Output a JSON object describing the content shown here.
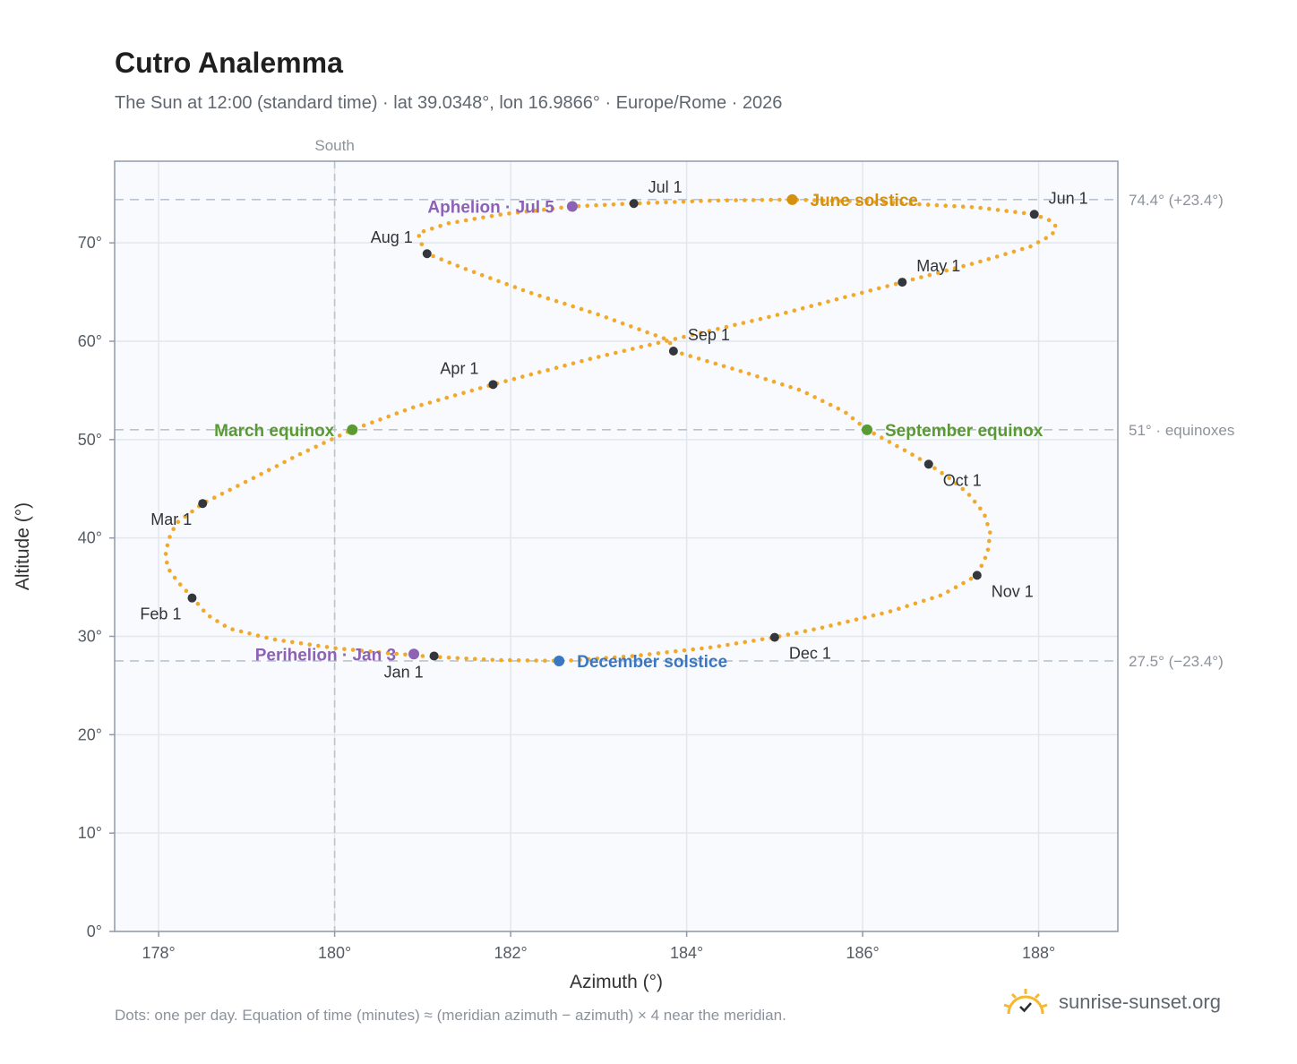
{
  "title": "Cutro Analemma",
  "subtitle": "The Sun at 12:00 (standard time) · lat 39.0348°, lon 16.9866° · Europe/Rome · 2026",
  "footnote": "Dots: one per day. Equation of time (minutes) ≈ (meridian azimuth − azimuth) × 4 near the meridian.",
  "brand": {
    "name": "sunrise-sunset.org",
    "icon": "sun-logo-icon"
  },
  "colors": {
    "path": "#f2a92a",
    "month_marker": "#33373d",
    "equinox": "#5a9a32",
    "june_solstice": "#d4900f",
    "december_solstice": "#3a77c2",
    "apsis": "#8d62b5",
    "reference_line": "#b9c3cf",
    "plot_background": "#f8fafd",
    "frame": "#8f9aa8",
    "grid": "#e2e7ee"
  },
  "chart_data": {
    "type": "scatter",
    "xlabel": "Azimuth (°)",
    "ylabel": "Altitude (°)",
    "xlim": [
      177.5,
      188.9
    ],
    "ylim": [
      0,
      78.3
    ],
    "x_ticks": [
      178,
      180,
      182,
      184,
      186,
      188
    ],
    "x_tick_labels": [
      "178°",
      "180°",
      "182°",
      "184°",
      "186°",
      "188°"
    ],
    "y_ticks": [
      0,
      10,
      20,
      30,
      40,
      50,
      60,
      70
    ],
    "y_tick_labels": [
      "0°",
      "10°",
      "20°",
      "30°",
      "40°",
      "50°",
      "60°",
      "70°"
    ],
    "grid": true,
    "meridian": {
      "azimuth": 180,
      "label": "South"
    },
    "reference_lines": [
      {
        "altitude": 74.4,
        "label": "74.4° (+23.4°)"
      },
      {
        "altitude": 51.0,
        "label": "51° · equinoxes"
      },
      {
        "altitude": 27.5,
        "label": "27.5° (−23.4°)"
      }
    ],
    "path_anchors": [
      [
        181.0,
        28.0
      ],
      [
        180.6,
        28.3
      ],
      [
        180.0,
        28.8
      ],
      [
        179.3,
        29.7
      ],
      [
        178.8,
        30.8
      ],
      [
        178.55,
        32.2
      ],
      [
        178.38,
        34.0
      ],
      [
        178.22,
        35.5
      ],
      [
        178.1,
        37.0
      ],
      [
        178.08,
        38.5
      ],
      [
        178.12,
        40.0
      ],
      [
        178.2,
        41.5
      ],
      [
        178.5,
        43.5
      ],
      [
        179.1,
        46.2
      ],
      [
        179.6,
        48.5
      ],
      [
        180.2,
        51.0
      ],
      [
        180.9,
        53.3
      ],
      [
        181.8,
        55.6
      ],
      [
        182.9,
        58.2
      ],
      [
        183.9,
        60.3
      ],
      [
        185.0,
        62.6
      ],
      [
        186.45,
        66.0
      ],
      [
        187.3,
        68.0
      ],
      [
        187.9,
        69.6
      ],
      [
        188.15,
        70.8
      ],
      [
        188.2,
        71.6
      ],
      [
        188.15,
        72.2
      ],
      [
        187.95,
        72.9
      ],
      [
        187.3,
        73.6
      ],
      [
        186.3,
        74.1
      ],
      [
        185.2,
        74.4
      ],
      [
        184.3,
        74.3
      ],
      [
        183.4,
        74.0
      ],
      [
        182.7,
        73.7
      ],
      [
        181.9,
        72.9
      ],
      [
        181.3,
        72.0
      ],
      [
        180.95,
        71.0
      ],
      [
        180.98,
        70.0
      ],
      [
        181.05,
        68.9
      ],
      [
        181.5,
        67.3
      ],
      [
        182.2,
        65.0
      ],
      [
        183.0,
        62.7
      ],
      [
        183.8,
        60.1
      ],
      [
        183.85,
        59.0
      ],
      [
        184.6,
        57.0
      ],
      [
        185.3,
        55.0
      ],
      [
        185.8,
        52.8
      ],
      [
        186.05,
        51.0
      ],
      [
        186.5,
        48.8
      ],
      [
        186.75,
        47.5
      ],
      [
        187.0,
        46.0
      ],
      [
        187.2,
        44.5
      ],
      [
        187.38,
        42.5
      ],
      [
        187.45,
        40.5
      ],
      [
        187.42,
        38.5
      ],
      [
        187.3,
        36.2
      ],
      [
        186.9,
        34.2
      ],
      [
        186.3,
        32.5
      ],
      [
        185.5,
        30.8
      ],
      [
        185.0,
        29.9
      ],
      [
        184.3,
        28.9
      ],
      [
        183.4,
        28.0
      ],
      [
        182.6,
        27.5
      ],
      [
        181.8,
        27.6
      ],
      [
        181.15,
        27.9
      ],
      [
        181.0,
        28.0
      ]
    ],
    "months": [
      {
        "label": "Jan 1",
        "azimuth": 181.13,
        "altitude": 28.0,
        "label_pos": "below-left"
      },
      {
        "label": "Feb 1",
        "azimuth": 178.38,
        "altitude": 33.9,
        "label_pos": "below-left"
      },
      {
        "label": "Mar 1",
        "azimuth": 178.5,
        "altitude": 43.5,
        "label_pos": "below-left"
      },
      {
        "label": "Apr 1",
        "azimuth": 181.8,
        "altitude": 55.6,
        "label_pos": "above-left"
      },
      {
        "label": "May 1",
        "azimuth": 186.45,
        "altitude": 66.0,
        "label_pos": "above-right"
      },
      {
        "label": "Jun 1",
        "azimuth": 187.95,
        "altitude": 72.9,
        "label_pos": "above-right"
      },
      {
        "label": "Jul 1",
        "azimuth": 183.4,
        "altitude": 74.0,
        "label_pos": "above-right"
      },
      {
        "label": "Aug 1",
        "azimuth": 181.05,
        "altitude": 68.9,
        "label_pos": "above-left"
      },
      {
        "label": "Sep 1",
        "azimuth": 183.85,
        "altitude": 59.0,
        "label_pos": "above-right"
      },
      {
        "label": "Oct 1",
        "azimuth": 186.75,
        "altitude": 47.5,
        "label_pos": "below-right"
      },
      {
        "label": "Nov 1",
        "azimuth": 187.3,
        "altitude": 36.2,
        "label_pos": "below-right"
      },
      {
        "label": "Dec 1",
        "azimuth": 185.0,
        "altitude": 29.9,
        "label_pos": "below-right"
      }
    ],
    "events": [
      {
        "label": "March equinox",
        "azimuth": 180.2,
        "altitude": 51.0,
        "color": "#5a9a32",
        "label_side": "left"
      },
      {
        "label": "September equinox",
        "azimuth": 186.05,
        "altitude": 51.0,
        "color": "#5a9a32",
        "label_side": "right"
      },
      {
        "label": "June solstice",
        "azimuth": 185.2,
        "altitude": 74.4,
        "color": "#d4900f",
        "label_side": "right"
      },
      {
        "label": "December solstice",
        "azimuth": 182.55,
        "altitude": 27.5,
        "color": "#3a77c2",
        "label_side": "right"
      },
      {
        "label": "Aphelion · Jul 5",
        "azimuth": 182.7,
        "altitude": 73.7,
        "color": "#8d62b5",
        "label_side": "left"
      },
      {
        "label": "Perihelion · Jan 3",
        "azimuth": 180.9,
        "altitude": 28.2,
        "color": "#8d62b5",
        "label_side": "left"
      }
    ]
  }
}
